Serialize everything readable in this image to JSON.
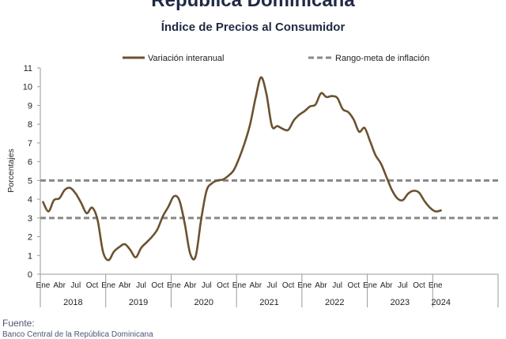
{
  "header": {
    "title": "República Dominicana",
    "subtitle": "Índice de Precios al Consumidor"
  },
  "footer": {
    "source_label": "Fuente:",
    "source_text": "Banco Central de la República Dominicana"
  },
  "chart_data": {
    "type": "line",
    "ylabel": "Porcentajes",
    "ylim": [
      0,
      11
    ],
    "yticks": [
      0,
      1,
      2,
      3,
      4,
      5,
      6,
      7,
      8,
      9,
      10,
      11
    ],
    "month_labels": [
      "Ene",
      "Abr",
      "Jul",
      "Oct"
    ],
    "years": [
      "2018",
      "2019",
      "2020",
      "2021",
      "2022",
      "2023",
      "2024"
    ],
    "grid": false,
    "legend_position": "top",
    "colors": {
      "series": "#6b5230",
      "target": "#888888"
    },
    "series": [
      {
        "name": "Variación interanual",
        "style": "solid",
        "x": [
          "2018-01",
          "2018-02",
          "2018-03",
          "2018-04",
          "2018-05",
          "2018-06",
          "2018-07",
          "2018-08",
          "2018-09",
          "2018-10",
          "2018-11",
          "2018-12",
          "2019-01",
          "2019-02",
          "2019-03",
          "2019-04",
          "2019-05",
          "2019-06",
          "2019-07",
          "2019-08",
          "2019-09",
          "2019-10",
          "2019-11",
          "2019-12",
          "2020-01",
          "2020-02",
          "2020-03",
          "2020-04",
          "2020-05",
          "2020-06",
          "2020-07",
          "2020-08",
          "2020-09",
          "2020-10",
          "2020-11",
          "2020-12",
          "2021-01",
          "2021-02",
          "2021-03",
          "2021-04",
          "2021-05",
          "2021-06",
          "2021-07",
          "2021-08",
          "2021-09",
          "2021-10",
          "2021-11",
          "2021-12",
          "2022-01",
          "2022-02",
          "2022-03",
          "2022-04",
          "2022-05",
          "2022-06",
          "2022-07",
          "2022-08",
          "2022-09",
          "2022-10",
          "2022-11",
          "2022-12",
          "2023-01",
          "2023-02",
          "2023-03",
          "2023-04",
          "2023-05",
          "2023-06",
          "2023-07",
          "2023-08",
          "2023-09",
          "2023-10",
          "2023-11",
          "2023-12",
          "2024-01",
          "2024-02"
        ],
        "values": [
          3.85,
          3.35,
          3.95,
          4.05,
          4.5,
          4.6,
          4.3,
          3.8,
          3.25,
          3.55,
          2.9,
          1.2,
          0.75,
          1.2,
          1.45,
          1.6,
          1.3,
          0.9,
          1.4,
          1.7,
          2.0,
          2.4,
          3.1,
          3.6,
          4.15,
          3.95,
          2.7,
          1.1,
          0.95,
          2.9,
          4.45,
          4.85,
          5.0,
          5.05,
          5.25,
          5.55,
          6.2,
          7.0,
          8.0,
          9.4,
          10.5,
          9.6,
          7.9,
          7.9,
          7.75,
          7.7,
          8.2,
          8.5,
          8.7,
          8.95,
          9.05,
          9.65,
          9.45,
          9.5,
          9.4,
          8.8,
          8.65,
          8.25,
          7.6,
          7.8,
          7.1,
          6.35,
          5.9,
          5.2,
          4.5,
          4.05,
          3.95,
          4.3,
          4.45,
          4.35,
          3.9,
          3.55,
          3.35,
          3.4
        ]
      },
      {
        "name": "Rango-meta de inflación",
        "style": "dashed",
        "band": [
          3,
          5
        ]
      }
    ]
  }
}
